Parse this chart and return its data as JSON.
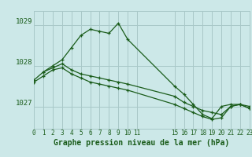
{
  "background_color": "#cce8e8",
  "grid_color": "#a8c8c8",
  "line_color": "#1a5c1a",
  "title": "Graphe pression niveau de la mer (hPa)",
  "title_color": "#1a5c1a",
  "ytick_labels": [
    "1029",
    "1028",
    "1027"
  ],
  "ytick_vals": [
    1029,
    1028,
    1027
  ],
  "xtick_labels": [
    "0",
    "1",
    "2",
    "3",
    "4",
    "5",
    "6",
    "7",
    "8",
    "9",
    "10",
    "11",
    "15",
    "16",
    "17",
    "18",
    "19",
    "20",
    "21",
    "22",
    "23"
  ],
  "xtick_positions": [
    0,
    1,
    2,
    3,
    4,
    5,
    6,
    7,
    8,
    9,
    10,
    11,
    15,
    16,
    17,
    18,
    19,
    20,
    21,
    22,
    23
  ],
  "xlim": [
    0,
    23
  ],
  "ylim": [
    1026.45,
    1029.35
  ],
  "lines": [
    {
      "x": [
        0,
        1,
        2,
        3,
        4,
        5,
        6,
        7,
        8,
        9,
        10,
        15,
        16,
        17,
        18,
        19,
        20,
        21,
        22,
        23
      ],
      "y": [
        1027.65,
        1027.85,
        1028.0,
        1028.15,
        1028.45,
        1028.75,
        1028.9,
        1028.85,
        1028.8,
        1029.05,
        1028.65,
        1027.5,
        1027.3,
        1027.05,
        1026.8,
        1026.7,
        1027.0,
        1027.05,
        1027.05,
        1027.0
      ]
    },
    {
      "x": [
        1,
        2,
        3,
        4,
        5,
        6,
        7,
        8,
        9,
        10,
        15,
        16,
        17,
        18,
        19,
        20,
        21,
        22,
        23
      ],
      "y": [
        1027.85,
        1027.95,
        1028.05,
        1027.9,
        1027.8,
        1027.75,
        1027.7,
        1027.65,
        1027.6,
        1027.55,
        1027.25,
        1027.1,
        1027.0,
        1026.9,
        1026.85,
        1026.8,
        1027.0,
        1027.05,
        1026.95
      ]
    },
    {
      "x": [
        0,
        1,
        2,
        3,
        4,
        5,
        6,
        7,
        8,
        9,
        10,
        15,
        16,
        17,
        18,
        19,
        20,
        21,
        22,
        23
      ],
      "y": [
        1027.6,
        1027.75,
        1027.9,
        1027.95,
        1027.8,
        1027.7,
        1027.6,
        1027.55,
        1027.5,
        1027.45,
        1027.4,
        1027.05,
        1026.95,
        1026.85,
        1026.75,
        1026.68,
        1026.72,
        1027.0,
        1027.05,
        1026.95
      ]
    }
  ]
}
